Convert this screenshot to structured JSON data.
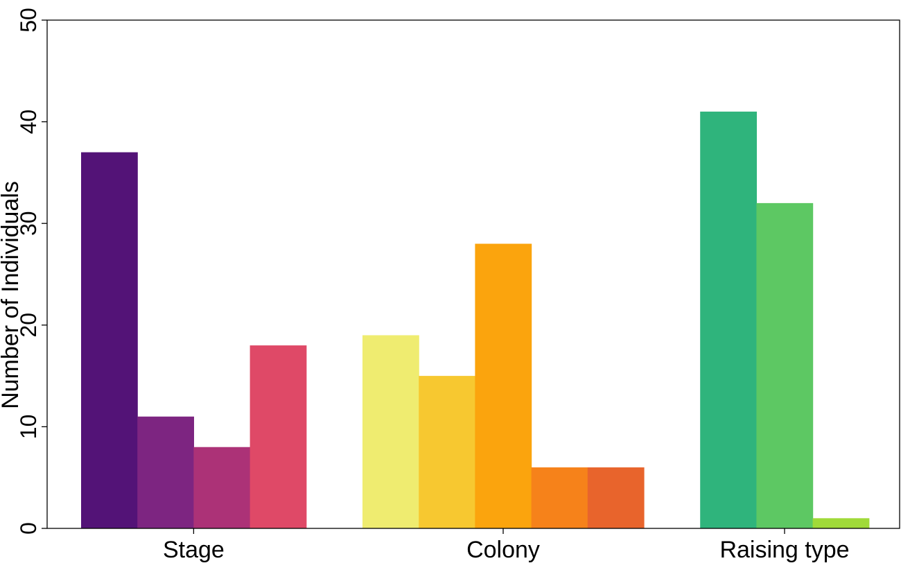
{
  "chart_data": {
    "type": "bar",
    "title": "",
    "xlabel": "",
    "ylabel": "Number of Individuals",
    "ylim": [
      0,
      50
    ],
    "yticks": [
      0,
      10,
      20,
      30,
      40,
      50
    ],
    "grid": false,
    "legend": "none",
    "groups": [
      {
        "label": "Stage",
        "values": [
          37,
          11,
          8,
          18
        ],
        "colors": [
          "#531377",
          "#7D2581",
          "#AC3277",
          "#DF4967"
        ]
      },
      {
        "label": "Colony",
        "values": [
          19,
          15,
          28,
          6,
          6
        ],
        "colors": [
          "#EFEC70",
          "#F7C830",
          "#FBA40D",
          "#F6821A",
          "#E8642C"
        ]
      },
      {
        "label": "Raising type",
        "values": [
          41,
          32,
          1
        ],
        "colors": [
          "#2FB47C",
          "#5DC863",
          "#A0DA39"
        ]
      }
    ]
  }
}
